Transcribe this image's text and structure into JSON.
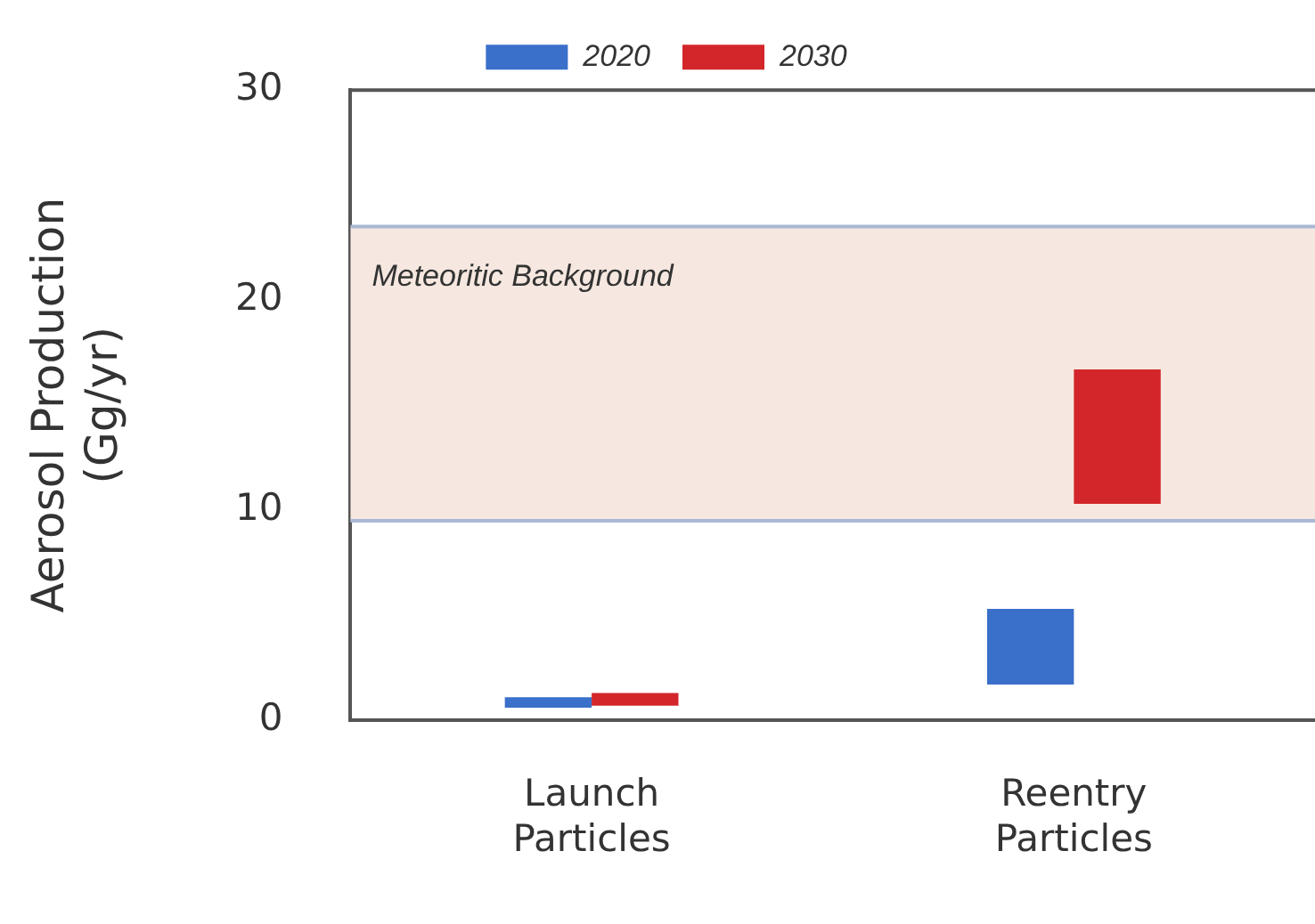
{
  "chart_data": {
    "type": "bar",
    "ylabel": "Aerosol Production (Gg/yr)",
    "categories": [
      "Launch Particles",
      "Reentry Particles"
    ],
    "series": [
      {
        "name": "2020",
        "color": "#3a6fca",
        "base": [
          0.6,
          1.7
        ],
        "values": [
          0.5,
          3.6
        ]
      },
      {
        "name": "2030",
        "color": "#d3262b",
        "base": [
          0.7,
          10.3
        ],
        "values": [
          0.6,
          6.4
        ]
      }
    ],
    "ylim": [
      0,
      30
    ],
    "ref_lines": [
      {
        "axis": "y",
        "value": 23.5,
        "color": "#a9b8d4"
      },
      {
        "axis": "y",
        "value": 9.5,
        "color": "#a9b8d4"
      }
    ],
    "yticks": [
      0,
      10,
      20,
      30
    ],
    "grid": false,
    "legend": "top",
    "bands": [
      {
        "axis": "y",
        "from": 9.5,
        "to": 23.5,
        "label": "Meteoritic Background",
        "color": "#f6e8e0"
      }
    ]
  }
}
